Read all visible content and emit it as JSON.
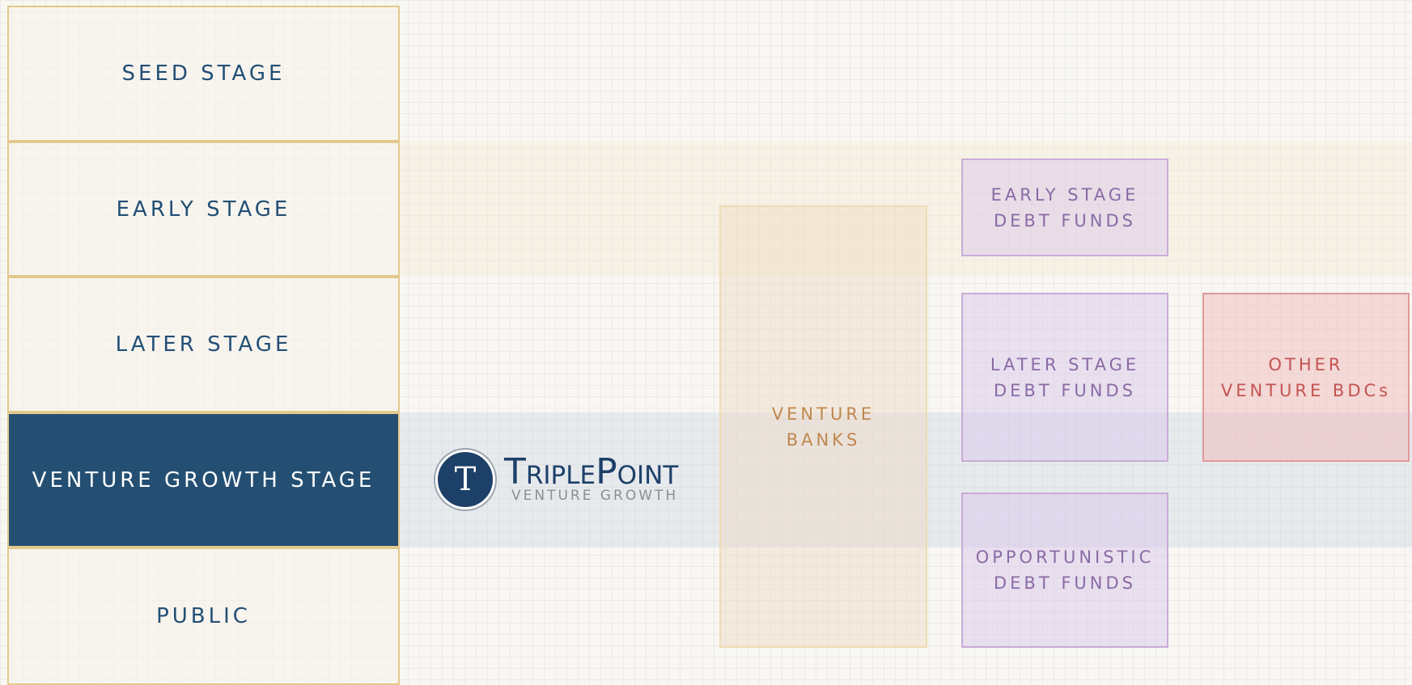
{
  "stages": [
    "SEED STAGE",
    "EARLY STAGE",
    "LATER STAGE",
    "VENTURE GROWTH STAGE",
    "PUBLIC"
  ],
  "logo": {
    "name": "TriplePoint",
    "tagline": "VENTURE GROWTH",
    "icon": "T"
  },
  "providers": [
    {
      "lines": [
        "VENTURE",
        "BANKS"
      ]
    },
    {
      "lines": [
        "EARLY STAGE",
        "DEBT FUNDS"
      ]
    },
    {
      "lines": [
        "LATER STAGE",
        "DEBT FUNDS"
      ]
    },
    {
      "lines": [
        "OPPORTUNISTIC",
        "DEBT FUNDS"
      ]
    },
    {
      "lines": [
        "OTHER",
        "VENTURE BDCs"
      ]
    }
  ]
}
